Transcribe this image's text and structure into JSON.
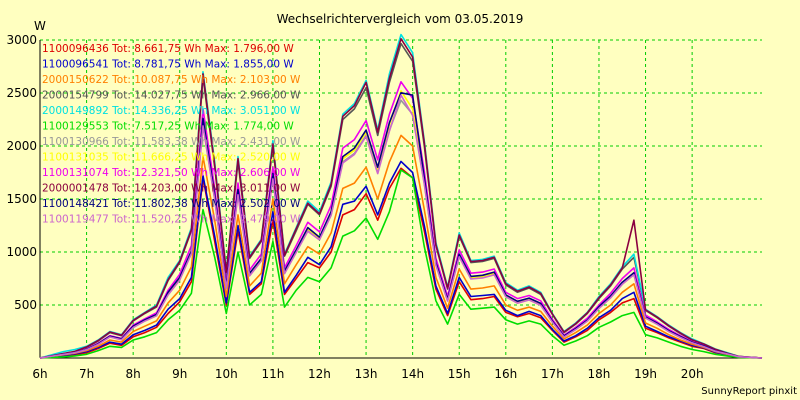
{
  "chart_data": {
    "type": "line",
    "title": "Wechselrichtervergleich vom 03.05.2019",
    "ylabel": "W",
    "xlabel": "",
    "footer": "SunnyReport pinxit",
    "ylim": [
      0,
      3000
    ],
    "xlim": [
      6,
      21.5
    ],
    "yticks": [
      500,
      1000,
      1500,
      2000,
      2500,
      3000
    ],
    "xticks": [
      {
        "v": 6,
        "label": "6h"
      },
      {
        "v": 7,
        "label": "7h"
      },
      {
        "v": 8,
        "label": "8h"
      },
      {
        "v": 9,
        "label": "9h"
      },
      {
        "v": 10,
        "label": "10h"
      },
      {
        "v": 11,
        "label": "11h"
      },
      {
        "v": 12,
        "label": "12h"
      },
      {
        "v": 13,
        "label": "13h"
      },
      {
        "v": 14,
        "label": "14h"
      },
      {
        "v": 15,
        "label": "15h"
      },
      {
        "v": 16,
        "label": "16h"
      },
      {
        "v": 17,
        "label": "17h"
      },
      {
        "v": 18,
        "label": "18h"
      },
      {
        "v": 19,
        "label": "19h"
      },
      {
        "v": 20,
        "label": "20h"
      }
    ],
    "grid": true,
    "legend_position": "top-left",
    "x": [
      6,
      6.5,
      6.75,
      7,
      7.25,
      7.5,
      7.75,
      8,
      8.25,
      8.5,
      8.75,
      9,
      9.25,
      9.5,
      9.75,
      10,
      10.25,
      10.5,
      10.75,
      11,
      11.25,
      11.5,
      11.75,
      12,
      12.25,
      12.5,
      12.75,
      13,
      13.25,
      13.5,
      13.75,
      14,
      14.25,
      14.5,
      14.75,
      15,
      15.25,
      15.5,
      15.75,
      16,
      16.25,
      16.5,
      16.75,
      17,
      17.25,
      17.5,
      17.75,
      18,
      18.25,
      18.5,
      18.75,
      19,
      19.25,
      19.5,
      19.75,
      20,
      20.25,
      20.5,
      20.75,
      21,
      21.5
    ],
    "series": [
      {
        "name": "1100096436 Tot: 8.661,75 Wh Max: 1.796,00 W",
        "color": "#dd0000",
        "label": "1100096436 Tot: 8.661,75 Wh Max: 1.796,00 W",
        "values": [
          0,
          20,
          30,
          50,
          90,
          140,
          120,
          200,
          240,
          290,
          420,
          530,
          720,
          1700,
          1100,
          500,
          1200,
          600,
          700,
          1300,
          600,
          750,
          900,
          850,
          1000,
          1350,
          1400,
          1550,
          1300,
          1600,
          1790,
          1700,
          1200,
          650,
          400,
          720,
          550,
          560,
          580,
          430,
          390,
          420,
          380,
          260,
          150,
          200,
          260,
          360,
          430,
          520,
          560,
          280,
          240,
          190,
          150,
          110,
          90,
          50,
          30,
          10,
          0
        ]
      },
      {
        "name": "1100096541 Tot: 8.781,75 Wh Max: 1.855,00 W",
        "color": "#0000cc",
        "label": "1100096541 Tot: 8.781,75 Wh Max: 1.855,00 W",
        "values": [
          0,
          25,
          40,
          60,
          100,
          150,
          130,
          220,
          260,
          310,
          460,
          560,
          760,
          1720,
          1150,
          520,
          1250,
          620,
          720,
          1380,
          620,
          780,
          950,
          880,
          1050,
          1450,
          1480,
          1620,
          1350,
          1650,
          1855,
          1750,
          1250,
          680,
          420,
          760,
          580,
          590,
          600,
          450,
          400,
          440,
          400,
          270,
          160,
          210,
          280,
          380,
          450,
          560,
          620,
          300,
          250,
          200,
          160,
          120,
          95,
          55,
          30,
          10,
          0
        ]
      },
      {
        "name": "2000150622 Tot: 10.087,75 Wh Max: 2.103,00 W",
        "color": "#ff8000",
        "label": "2000150622 Tot: 10.087,75 Wh Max: 2.103,00 W",
        "values": [
          0,
          30,
          45,
          70,
          110,
          170,
          150,
          250,
          300,
          350,
          520,
          640,
          860,
          1900,
          1300,
          580,
          1350,
          680,
          800,
          1500,
          700,
          880,
          1050,
          980,
          1180,
          1600,
          1650,
          1800,
          1500,
          1850,
          2100,
          2000,
          1400,
          760,
          470,
          840,
          650,
          660,
          680,
          500,
          450,
          480,
          440,
          300,
          180,
          240,
          310,
          420,
          500,
          620,
          700,
          330,
          280,
          220,
          170,
          130,
          100,
          60,
          35,
          10,
          0
        ]
      },
      {
        "name": "2000154799 Tot: 14.027,75 Wh Max: 2.966,00 W",
        "color": "#555555",
        "label": "2000154799 Tot: 14.027,75 Wh Max: 2.966,00 W",
        "values": [
          0,
          40,
          60,
          100,
          160,
          240,
          210,
          350,
          420,
          480,
          730,
          900,
          1200,
          2650,
          1800,
          800,
          1850,
          940,
          1100,
          2000,
          960,
          1200,
          1450,
          1350,
          1620,
          2250,
          2350,
          2550,
          2100,
          2600,
          2966,
          2800,
          2000,
          1060,
          650,
          1150,
          900,
          910,
          940,
          690,
          620,
          660,
          600,
          410,
          240,
          320,
          420,
          560,
          680,
          840,
          950,
          450,
          380,
          300,
          230,
          170,
          130,
          80,
          45,
          15,
          0
        ]
      },
      {
        "name": "2000149892 Tot: 14.336,25 Wh Max: 3.051,00 W",
        "color": "#00e0e0",
        "label": "2000149892 Tot: 14.336,25 Wh Max: 3.051,00 W",
        "values": [
          0,
          60,
          80,
          110,
          170,
          250,
          220,
          360,
          430,
          500,
          760,
          920,
          1230,
          2700,
          1850,
          820,
          1900,
          960,
          1120,
          2050,
          980,
          1230,
          1480,
          1380,
          1660,
          2300,
          2400,
          2620,
          2150,
          2680,
          3051,
          2880,
          2050,
          1090,
          670,
          1180,
          920,
          930,
          960,
          710,
          640,
          680,
          620,
          420,
          250,
          330,
          430,
          580,
          700,
          860,
          980,
          460,
          390,
          310,
          240,
          180,
          135,
          85,
          50,
          15,
          0
        ]
      },
      {
        "name": "1100129553 Tot: 7.517,25 Wh Max: 1.774,00 W",
        "color": "#00dd00",
        "label": "1100129553 Tot: 7.517,25 Wh Max: 1.774,00 W",
        "values": [
          0,
          10,
          20,
          35,
          70,
          110,
          100,
          170,
          200,
          240,
          360,
          450,
          610,
          1400,
          950,
          420,
          1000,
          500,
          600,
          1100,
          480,
          640,
          760,
          720,
          850,
          1150,
          1200,
          1320,
          1120,
          1380,
          1774,
          1700,
          1050,
          540,
          320,
          600,
          460,
          470,
          480,
          360,
          320,
          350,
          320,
          210,
          120,
          160,
          210,
          290,
          340,
          400,
          430,
          220,
          190,
          150,
          110,
          80,
          60,
          35,
          20,
          5,
          0
        ]
      },
      {
        "name": "1100130966 Tot: 11.583,38 Wh Max: 2.431,00 W",
        "color": "#999999",
        "label": "1100130966 Tot: 11.583,38 Wh Max: 2.431,00 W",
        "values": [
          0,
          35,
          50,
          80,
          130,
          200,
          175,
          290,
          350,
          400,
          600,
          740,
          990,
          2200,
          1500,
          660,
          1550,
          780,
          920,
          1700,
          800,
          1000,
          1200,
          1120,
          1350,
          1850,
          1930,
          2100,
          1750,
          2150,
          2431,
          2300,
          1650,
          880,
          540,
          960,
          750,
          760,
          790,
          580,
          520,
          550,
          500,
          340,
          200,
          270,
          350,
          470,
          570,
          700,
          790,
          380,
          320,
          250,
          195,
          145,
          110,
          65,
          40,
          12,
          0
        ]
      },
      {
        "name": "1100131035 Tot: 11.666,25 Wh Max: 2.520,00 W",
        "color": "#ffff00",
        "label": "1100131035 Tot: 11.666,25 Wh Max: 2.520,00 W",
        "values": [
          0,
          35,
          50,
          80,
          130,
          200,
          175,
          295,
          355,
          405,
          610,
          750,
          1000,
          2250,
          1520,
          670,
          1570,
          790,
          930,
          1720,
          810,
          1010,
          1220,
          1130,
          1370,
          1880,
          1960,
          2130,
          1780,
          2200,
          2520,
          2350,
          1680,
          890,
          550,
          970,
          760,
          770,
          800,
          590,
          530,
          560,
          510,
          345,
          205,
          275,
          355,
          480,
          580,
          710,
          800,
          385,
          325,
          255,
          200,
          148,
          112,
          66,
          40,
          12,
          0
        ]
      },
      {
        "name": "1100131074 Tot: 12.321,50 Wh Max: 2.606,00 W",
        "color": "#ee00ee",
        "label": "1100131074 Tot: 12.321,50 Wh Max: 2.606,00 W",
        "values": [
          0,
          38,
          55,
          85,
          140,
          210,
          185,
          310,
          370,
          425,
          640,
          790,
          1060,
          2350,
          1600,
          710,
          1650,
          830,
          980,
          1800,
          850,
          1060,
          1280,
          1190,
          1440,
          1980,
          2060,
          2240,
          1870,
          2300,
          2606,
          2450,
          1760,
          940,
          580,
          1020,
          800,
          810,
          840,
          620,
          560,
          590,
          540,
          365,
          215,
          290,
          375,
          500,
          610,
          750,
          850,
          405,
          340,
          270,
          210,
          155,
          118,
          70,
          42,
          13,
          0
        ]
      },
      {
        "name": "2000001478 Tot: 14.203,00 Wh Max: 3.011,00 W",
        "color": "#8b0040",
        "label": "2000001478 Tot: 14.203,00 Wh Max: 3.011,00 W",
        "values": [
          0,
          42,
          62,
          105,
          165,
          245,
          215,
          355,
          425,
          490,
          740,
          910,
          1210,
          2680,
          1820,
          810,
          1880,
          950,
          1110,
          2020,
          970,
          1220,
          1460,
          1360,
          1640,
          2280,
          2380,
          2600,
          2130,
          2640,
          3011,
          2840,
          2030,
          1070,
          660,
          1160,
          910,
          920,
          950,
          700,
          630,
          670,
          610,
          415,
          245,
          325,
          425,
          570,
          690,
          850,
          1300,
          455,
          385,
          305,
          235,
          172,
          132,
          82,
          46,
          15,
          0
        ]
      },
      {
        "name": "1100148421 Tot: 11.802,38 Wh Max: 2.502,00 W",
        "color": "#000080",
        "label": "1100148421 Tot: 11.802,38 Wh Max: 2.502,00 W",
        "values": [
          0,
          36,
          52,
          82,
          135,
          205,
          180,
          300,
          360,
          410,
          620,
          760,
          1010,
          2260,
          1540,
          680,
          1590,
          800,
          940,
          1740,
          820,
          1020,
          1230,
          1140,
          1380,
          1900,
          1980,
          2150,
          1800,
          2220,
          2502,
          2480,
          1700,
          900,
          555,
          980,
          770,
          780,
          810,
          595,
          535,
          565,
          515,
          348,
          208,
          278,
          358,
          485,
          585,
          715,
          805,
          388,
          328,
          258,
          202,
          150,
          114,
          67,
          41,
          12,
          0
        ]
      },
      {
        "name": "1100119477 Tot: 11.520,25 Wh Max: 2.479,00 W",
        "color": "#cc66cc",
        "label": "1100119477 Tot: 11.520,25 Wh Max: 2.479,00 W",
        "values": [
          0,
          34,
          50,
          78,
          128,
          198,
          172,
          288,
          348,
          398,
          595,
          735,
          985,
          2190,
          1495,
          655,
          1540,
          775,
          915,
          1690,
          795,
          995,
          1195,
          1115,
          1345,
          1840,
          1920,
          2090,
          1740,
          2140,
          2479,
          2290,
          1640,
          875,
          537,
          955,
          745,
          755,
          785,
          577,
          517,
          547,
          497,
          338,
          198,
          268,
          348,
          468,
          568,
          695,
          785,
          377,
          318,
          248,
          193,
          143,
          108,
          64,
          39,
          12,
          0
        ]
      }
    ]
  }
}
